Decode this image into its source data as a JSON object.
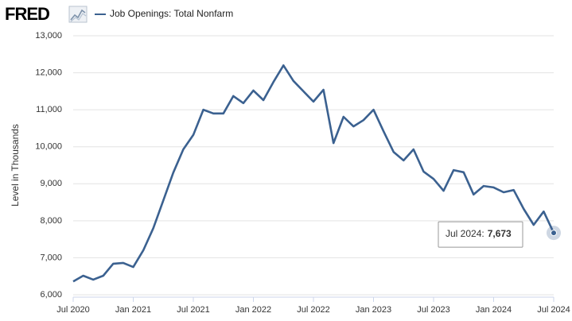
{
  "chart_data": {
    "type": "line",
    "logo": "FRED",
    "ylabel": "Level in Thousands",
    "x": [
      "Jul 2020",
      "Aug 2020",
      "Sep 2020",
      "Oct 2020",
      "Nov 2020",
      "Dec 2020",
      "Jan 2021",
      "Feb 2021",
      "Mar 2021",
      "Apr 2021",
      "May 2021",
      "Jun 2021",
      "Jul 2021",
      "Aug 2021",
      "Sep 2021",
      "Oct 2021",
      "Nov 2021",
      "Dec 2021",
      "Jan 2022",
      "Feb 2022",
      "Mar 2022",
      "Apr 2022",
      "May 2022",
      "Jun 2022",
      "Jul 2022",
      "Aug 2022",
      "Sep 2022",
      "Oct 2022",
      "Nov 2022",
      "Dec 2022",
      "Jan 2023",
      "Feb 2023",
      "Mar 2023",
      "Apr 2023",
      "May 2023",
      "Jun 2023",
      "Jul 2023",
      "Aug 2023",
      "Sep 2023",
      "Oct 2023",
      "Nov 2023",
      "Dec 2023",
      "Jan 2024",
      "Feb 2024",
      "Mar 2024",
      "Apr 2024",
      "May 2024",
      "Jun 2024",
      "Jul 2024"
    ],
    "series": [
      {
        "name": "Job Openings: Total Nonfarm",
        "color": "#3b6190",
        "values": [
          6360,
          6515,
          6410,
          6515,
          6840,
          6860,
          6750,
          7200,
          7800,
          8550,
          9300,
          9930,
          10320,
          11000,
          10900,
          10900,
          11370,
          11180,
          11520,
          11260,
          11750,
          12200,
          11780,
          11500,
          11220,
          11540,
          10100,
          10810,
          10550,
          10720,
          11000,
          10420,
          9860,
          9630,
          9930,
          9330,
          9130,
          8810,
          9370,
          9310,
          8710,
          8940,
          8900,
          8770,
          8830,
          8320,
          7890,
          8250,
          7673
        ],
        "value_labels": [
          null,
          null,
          null,
          null,
          null,
          null,
          null,
          null,
          null,
          null,
          null,
          null,
          null,
          null,
          null,
          null,
          null,
          null,
          null,
          null,
          null,
          null,
          null,
          null,
          null,
          null,
          null,
          null,
          null,
          null,
          null,
          null,
          null,
          null,
          null,
          null,
          null,
          null,
          null,
          null,
          null,
          null,
          null,
          null,
          null,
          null,
          null,
          null,
          "7,673"
        ]
      }
    ],
    "tooltip": {
      "label": "Jul 2024:"
    },
    "ylim": [
      6000,
      13000
    ],
    "yticks": [
      {
        "value": 6000,
        "label": "6,000"
      },
      {
        "value": 7000,
        "label": "7,000"
      },
      {
        "value": 8000,
        "label": "8,000"
      },
      {
        "value": 9000,
        "label": "9,000"
      },
      {
        "value": 10000,
        "label": "10,000"
      },
      {
        "value": 11000,
        "label": "11,000"
      },
      {
        "value": 12000,
        "label": "12,000"
      },
      {
        "value": 13000,
        "label": "13,000"
      }
    ],
    "xtick_every": 6,
    "grid": true
  }
}
